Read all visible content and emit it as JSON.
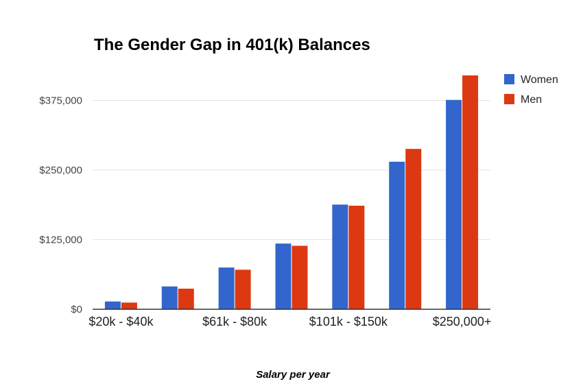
{
  "chart_data": {
    "type": "bar",
    "title": "The Gender Gap in 401(k) Balances",
    "xlabel": "Salary per year",
    "ylabel": "",
    "categories": [
      "$20k - $40k",
      "",
      "$61k - $80k",
      "",
      "$101k - $150k",
      "",
      "$250,000+"
    ],
    "series": [
      {
        "name": "Women",
        "color": "#3366cc",
        "values": [
          14000,
          41000,
          75000,
          118000,
          188000,
          265000,
          376000
        ]
      },
      {
        "name": "Men",
        "color": "#dc3912",
        "values": [
          12000,
          37000,
          71000,
          114000,
          186000,
          288000,
          420000
        ]
      }
    ],
    "ylim": [
      0,
      420000
    ],
    "yticks": [
      0,
      125000,
      250000,
      375000
    ],
    "ytick_labels": [
      "$0",
      "$125,000",
      "$250,000",
      "$375,000"
    ],
    "grid": true,
    "legend": "right"
  }
}
